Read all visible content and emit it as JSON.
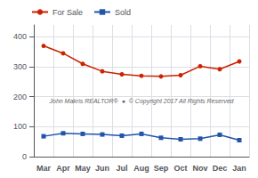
{
  "chart_data": {
    "type": "line",
    "categories": [
      "Mar",
      "Apr",
      "May",
      "Jun",
      "Jul",
      "Aug",
      "Sep",
      "Oct",
      "Nov",
      "Dec",
      "Jan"
    ],
    "series": [
      {
        "name": "For Sale",
        "color": "#cc2200",
        "marker": "circle",
        "values": [
          370,
          345,
          310,
          285,
          275,
          270,
          268,
          272,
          302,
          292,
          318
        ]
      },
      {
        "name": "Sold",
        "color": "#2255aa",
        "marker": "square",
        "values": [
          68,
          78,
          76,
          74,
          70,
          76,
          63,
          58,
          60,
          73,
          55
        ]
      }
    ],
    "ylim": [
      0,
      440
    ],
    "yticks": [
      0,
      100,
      200,
      300,
      400
    ],
    "grid": true,
    "legend": "upper left",
    "annotations": [
      "John Makris REALTOR®  ●  © Copyright 2017 All Rights Reserved"
    ]
  }
}
